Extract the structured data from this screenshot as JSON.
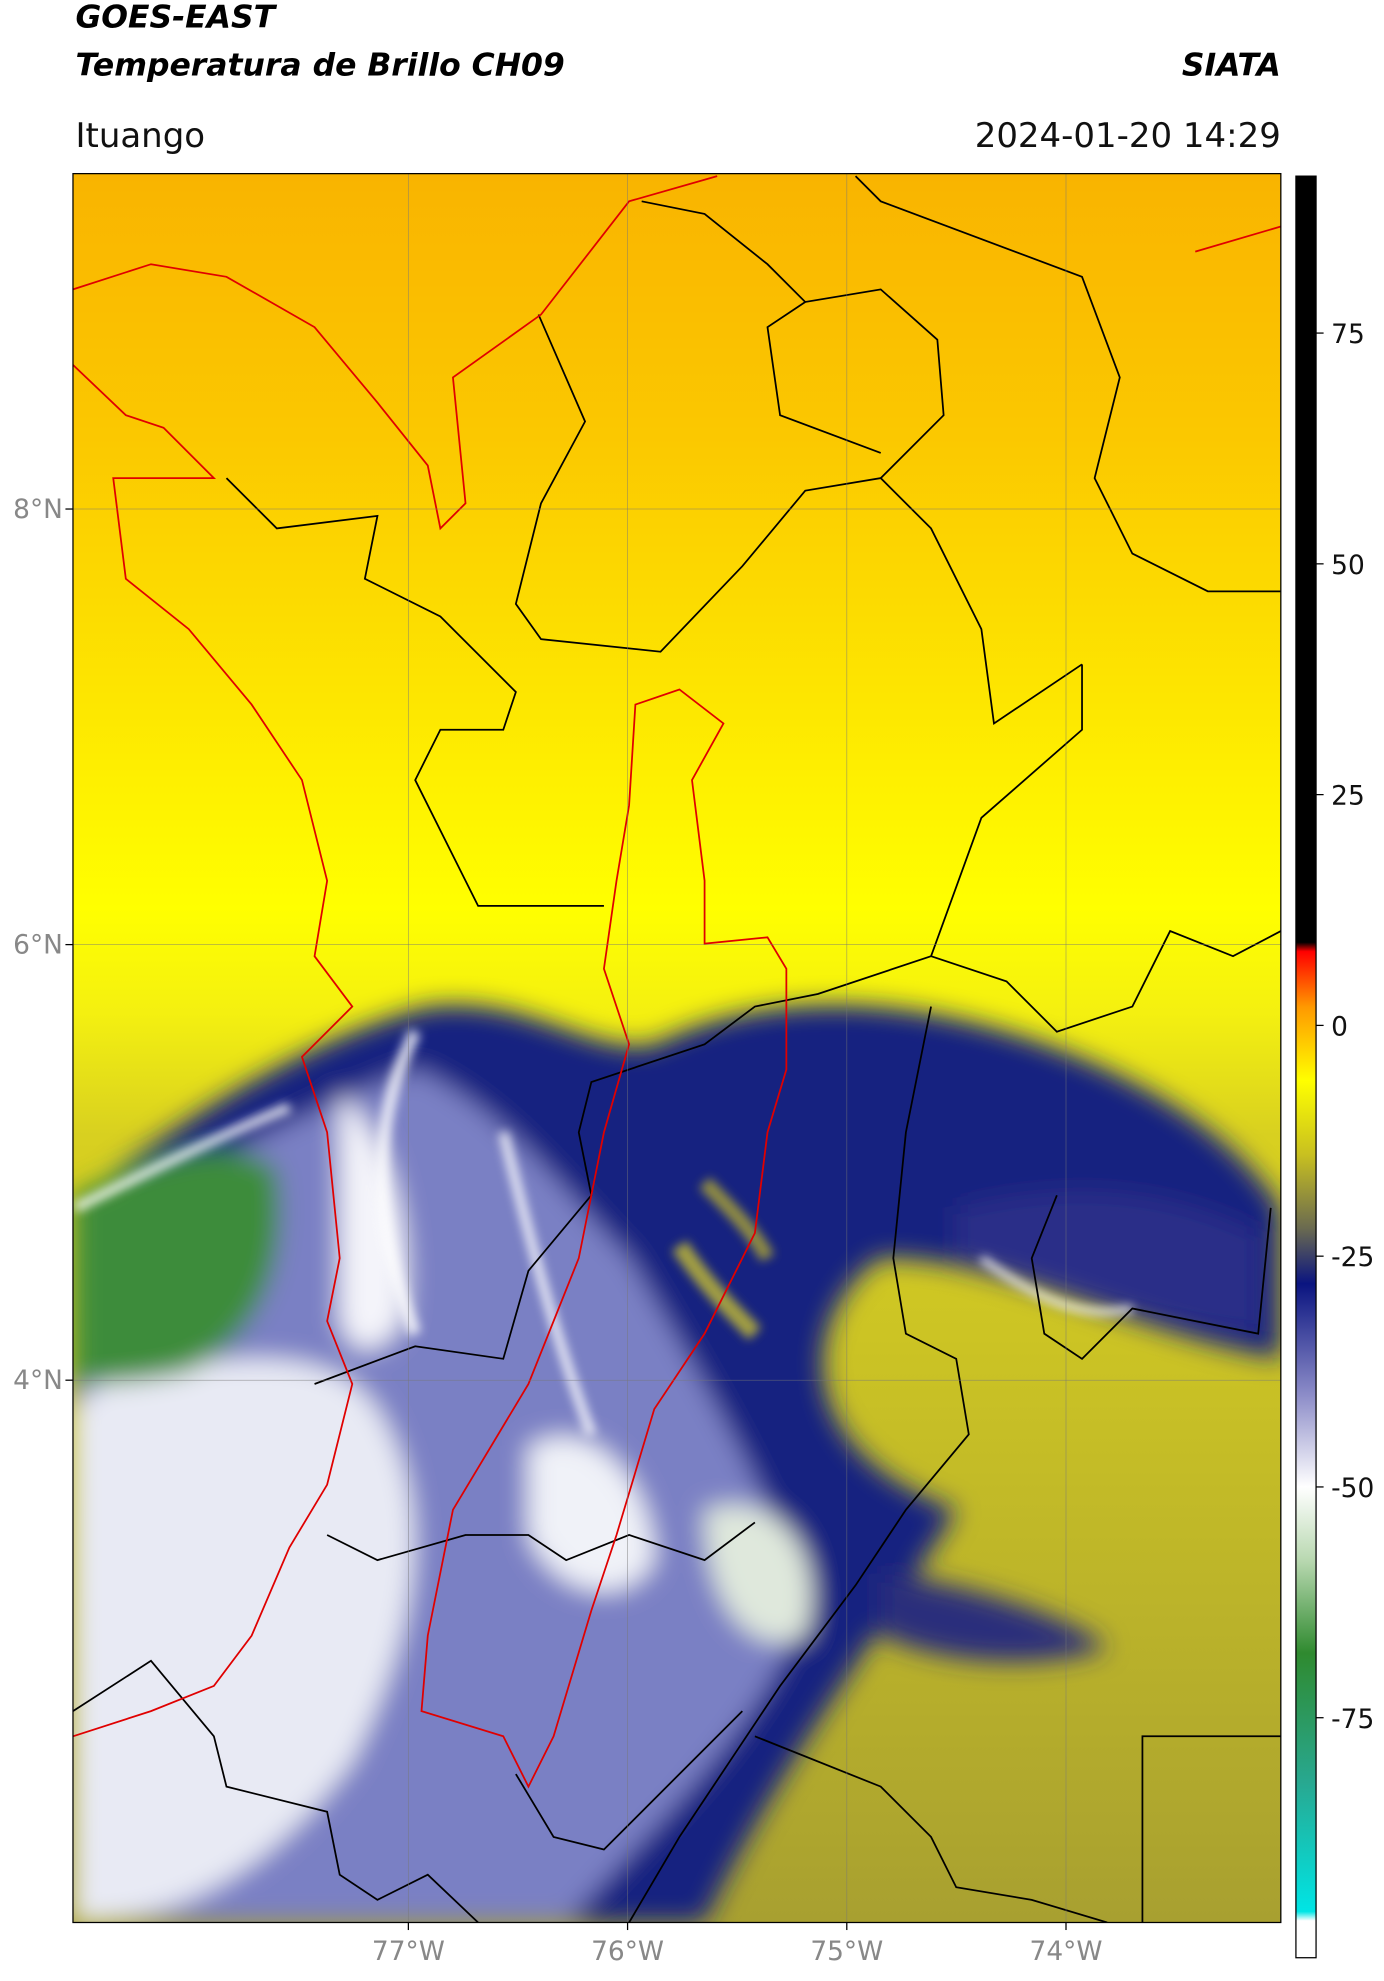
{
  "header": {
    "title_line1": "GOES-EAST",
    "title_line2": "Temperatura de Brillo CH09",
    "brand": "SIATA",
    "region": "Ituango",
    "datetime": "2024-01-20 14:29"
  },
  "map": {
    "xlim": [
      -78.53,
      -73.02
    ],
    "ylim": [
      1.51,
      9.54
    ],
    "lat_ticks": [
      {
        "value": 8,
        "label": "8°N"
      },
      {
        "value": 6,
        "label": "6°N"
      },
      {
        "value": 4,
        "label": "4°N"
      }
    ],
    "lon_ticks": [
      {
        "value": -77,
        "label": "77°W"
      },
      {
        "value": -76,
        "label": "76°W"
      },
      {
        "value": -75,
        "label": "75°W"
      },
      {
        "value": -74,
        "label": "74°W"
      }
    ],
    "grid": true
  },
  "colorbar": {
    "lim": [
      -101,
      92
    ],
    "ticks": [
      75,
      50,
      25,
      0,
      -25,
      -50,
      -75
    ],
    "stops": [
      {
        "value": -101,
        "color": "#ffffff"
      },
      {
        "value": -97,
        "color": "#ffffff"
      },
      {
        "value": -96,
        "color": "#00e5e5"
      },
      {
        "value": -82,
        "color": "#28a890"
      },
      {
        "value": -68,
        "color": "#2f8a2f"
      },
      {
        "value": -58,
        "color": "#b8d8b0"
      },
      {
        "value": -50,
        "color": "#ffffff"
      },
      {
        "value": -40,
        "color": "#8c8cc8"
      },
      {
        "value": -28,
        "color": "#0a1480"
      },
      {
        "value": -22,
        "color": "#6a6a50"
      },
      {
        "value": -14,
        "color": "#c8c020"
      },
      {
        "value": -6,
        "color": "#ffff00"
      },
      {
        "value": 2,
        "color": "#ff9900"
      },
      {
        "value": 8,
        "color": "#ff0000"
      },
      {
        "value": 9,
        "color": "#000000"
      },
      {
        "value": 92,
        "color": "#000000"
      }
    ]
  }
}
